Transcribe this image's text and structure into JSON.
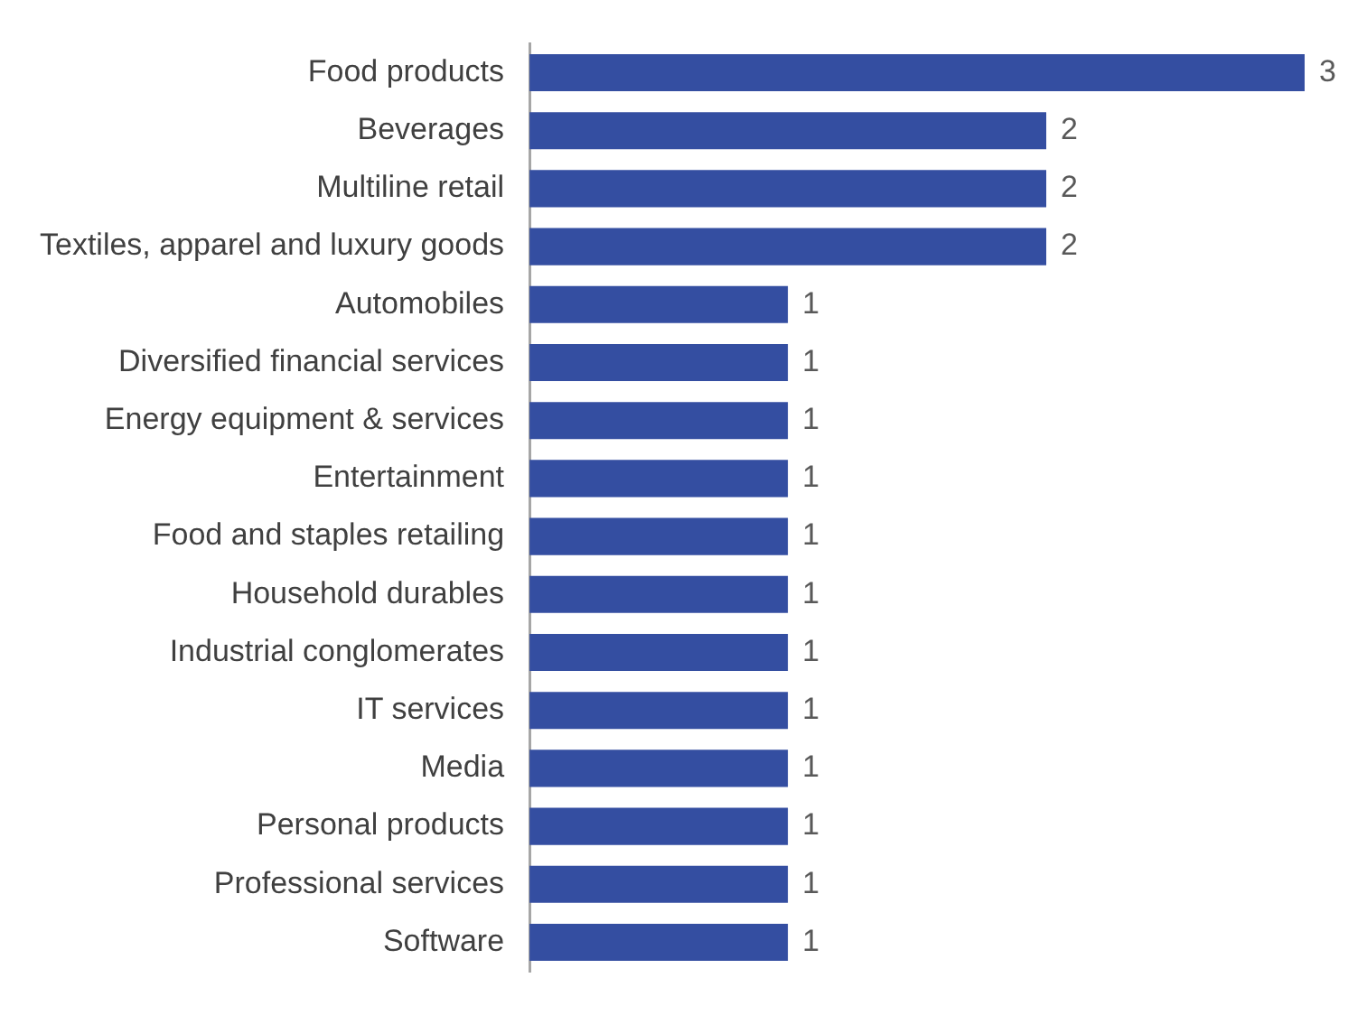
{
  "chart_data": {
    "type": "bar",
    "orientation": "horizontal",
    "categories": [
      "Food products",
      "Beverages",
      "Multiline retail",
      "Textiles, apparel and luxury goods",
      "Automobiles",
      "Diversified financial services",
      "Energy equipment & services",
      "Entertainment",
      "Food and staples retailing",
      "Household durables",
      "Industrial conglomerates",
      "IT services",
      "Media",
      "Personal products",
      "Professional services",
      "Software"
    ],
    "values": [
      3,
      2,
      2,
      2,
      1,
      1,
      1,
      1,
      1,
      1,
      1,
      1,
      1,
      1,
      1,
      1
    ],
    "color": "#344ea1",
    "xlim": [
      0,
      3
    ],
    "tick_labels": "y",
    "grid": false,
    "legend": false,
    "data_labels": true
  }
}
